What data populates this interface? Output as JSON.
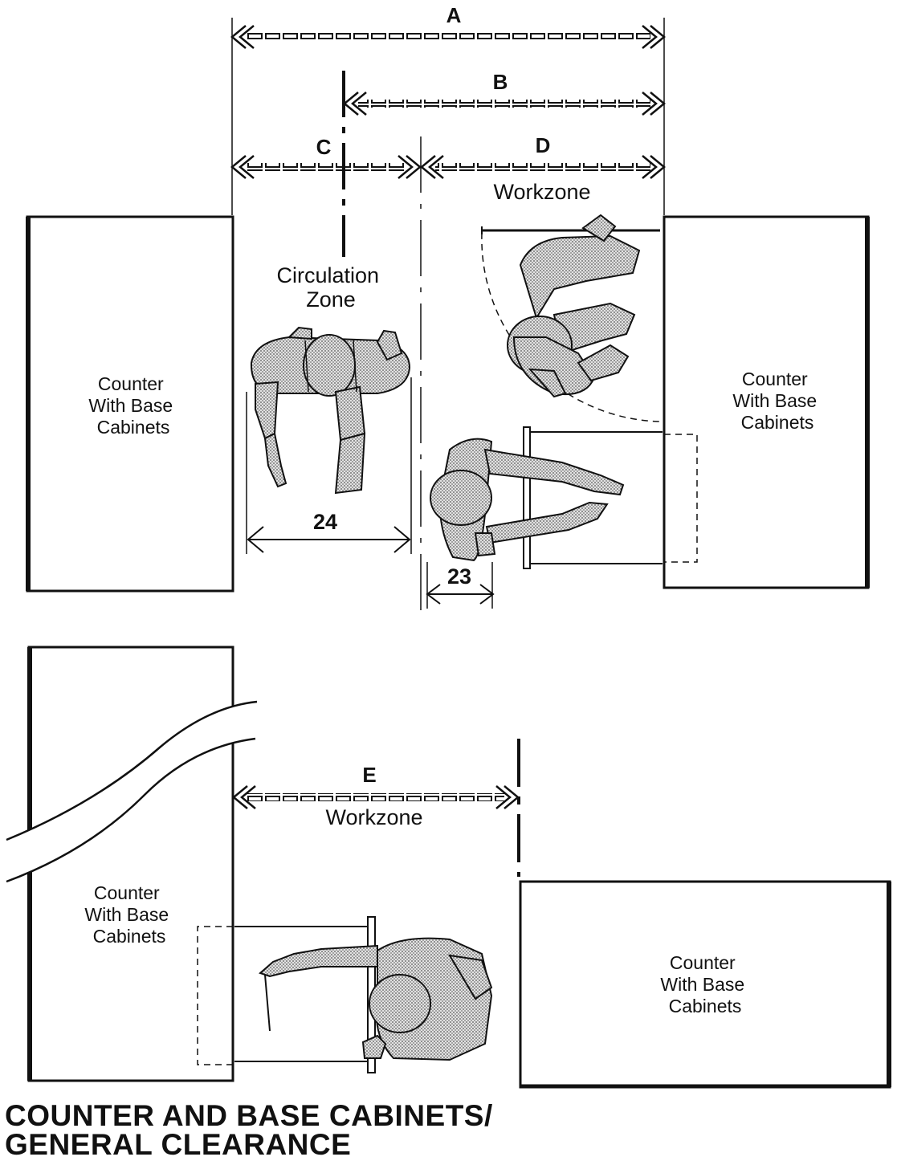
{
  "title": {
    "line1": "COUNTER AND BASE CABINETS/",
    "line2": "GENERAL CLEARANCE"
  },
  "dimensions": {
    "a": "A",
    "b": "B",
    "c": "C",
    "d": "D",
    "e": "E"
  },
  "zones": {
    "workzone_top": "Workzone",
    "circulation_line1": "Circulation",
    "circulation_line2": "Zone",
    "workzone_bottom": "Workzone"
  },
  "counters": {
    "top_left": [
      "Counter",
      "With Base",
      "Cabinets"
    ],
    "top_right": [
      "Counter",
      "With Base",
      "Cabinets"
    ],
    "bottom_left": [
      "Counter",
      "With Base",
      "Cabinets"
    ],
    "bottom_right": [
      "Counter",
      "With Base",
      "Cabinets"
    ]
  },
  "measurements": {
    "passing_width": "24",
    "stand_depth": "23"
  }
}
